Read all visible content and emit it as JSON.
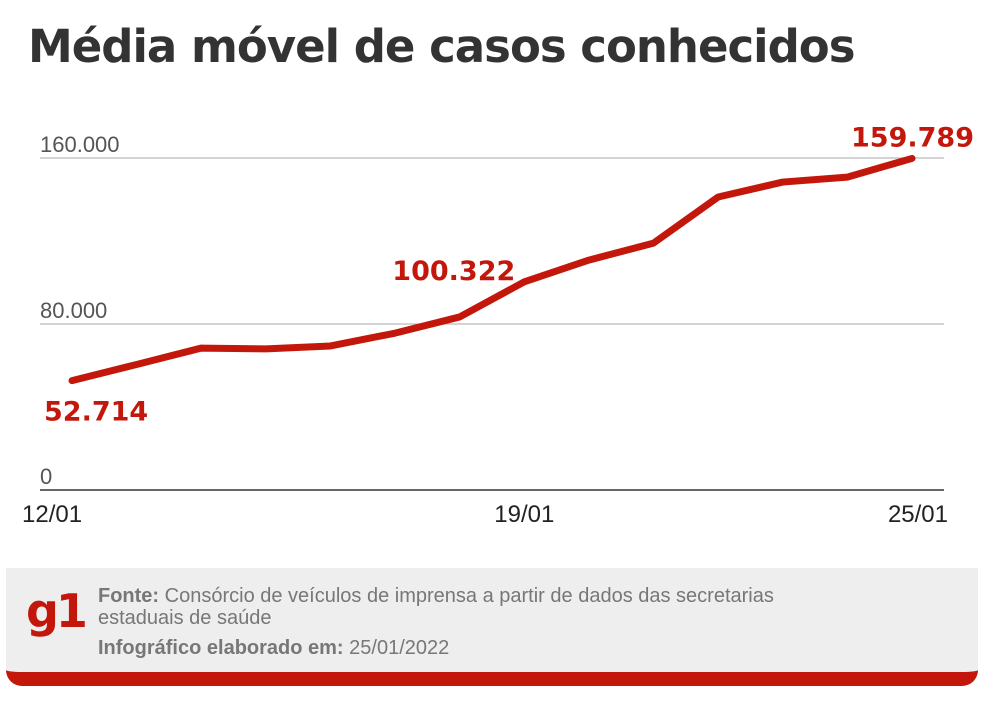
{
  "title": "Média móvel de casos conhecidos",
  "chart_data": {
    "type": "line",
    "title": "Média móvel de casos conhecidos",
    "x": [
      "12/01",
      "13/01",
      "14/01",
      "15/01",
      "16/01",
      "17/01",
      "18/01",
      "19/01",
      "20/01",
      "21/01",
      "22/01",
      "23/01",
      "24/01",
      "25/01"
    ],
    "values": [
      52714,
      60500,
      68400,
      68000,
      69400,
      75600,
      83400,
      100322,
      110800,
      119000,
      141200,
      148400,
      150800,
      159789
    ],
    "x_tick_labels": [
      "12/01",
      "19/01",
      "25/01"
    ],
    "y_ticks": [
      0,
      80000,
      160000
    ],
    "y_tick_labels": [
      "0",
      "80.000",
      "160.000"
    ],
    "ylim": [
      0,
      160000
    ],
    "grid": true,
    "data_labels": [
      {
        "x": "12/01",
        "text": "52.714"
      },
      {
        "x": "19/01",
        "text": "100.322"
      },
      {
        "x": "25/01",
        "text": "159.789"
      }
    ],
    "line_color": "#c4170c"
  },
  "footer": {
    "logo": "g1",
    "source_label": "Fonte:",
    "source_text": "Consórcio de veículos de imprensa a partir de dados das secretarias",
    "source_text_2": "estaduais de saúde",
    "made_label": "Infográfico elaborado em:",
    "made_date": "25/01/2022"
  }
}
